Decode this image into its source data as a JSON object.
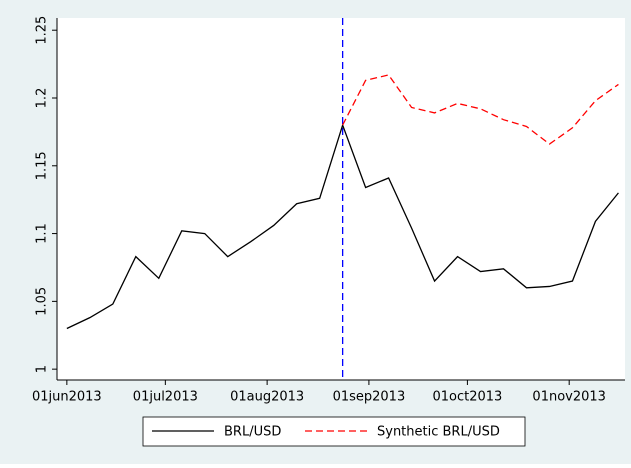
{
  "chart_data": {
    "type": "line",
    "x": [
      "2013-06-01",
      "2013-06-08",
      "2013-06-15",
      "2013-06-22",
      "2013-06-29",
      "2013-07-06",
      "2013-07-13",
      "2013-07-20",
      "2013-07-27",
      "2013-08-03",
      "2013-08-10",
      "2013-08-17",
      "2013-08-24",
      "2013-08-31",
      "2013-09-07",
      "2013-09-14",
      "2013-09-21",
      "2013-09-28",
      "2013-10-05",
      "2013-10-12",
      "2013-10-19",
      "2013-10-26",
      "2013-11-02",
      "2013-11-09",
      "2013-11-16"
    ],
    "series": [
      {
        "name": "BRL/USD",
        "color": "#000000",
        "dash": "solid",
        "values": [
          1.03,
          1.038,
          1.048,
          1.083,
          1.067,
          1.102,
          1.1,
          1.083,
          1.094,
          1.106,
          1.122,
          1.126,
          1.18,
          1.134,
          1.141,
          1.104,
          1.065,
          1.083,
          1.072,
          1.074,
          1.06,
          1.061,
          1.065,
          1.109,
          1.13
        ]
      },
      {
        "name": "Synthetic BRL/USD",
        "color": "#ff0000",
        "dash": "dashed",
        "values": [
          null,
          null,
          null,
          null,
          null,
          null,
          null,
          null,
          null,
          null,
          null,
          null,
          1.18,
          1.213,
          1.217,
          1.193,
          1.189,
          1.196,
          1.192,
          1.184,
          1.179,
          1.166,
          1.178,
          1.198,
          1.21
        ]
      }
    ],
    "vline": {
      "x": "2013-08-24",
      "color": "#0000ff"
    },
    "xlim": [
      "2013-05-29",
      "2013-11-18"
    ],
    "xticks": [
      {
        "value": "2013-06-01",
        "label": "01jun2013"
      },
      {
        "value": "2013-07-01",
        "label": "01jul2013"
      },
      {
        "value": "2013-08-01",
        "label": "01aug2013"
      },
      {
        "value": "2013-09-01",
        "label": "01sep2013"
      },
      {
        "value": "2013-10-01",
        "label": "01oct2013"
      },
      {
        "value": "2013-11-01",
        "label": "01nov2013"
      }
    ],
    "ylim": [
      0.992,
      1.259
    ],
    "yticks": [
      1,
      1.05,
      1.1,
      1.15,
      1.2,
      1.25
    ],
    "grid": false,
    "legend": "bottom"
  }
}
